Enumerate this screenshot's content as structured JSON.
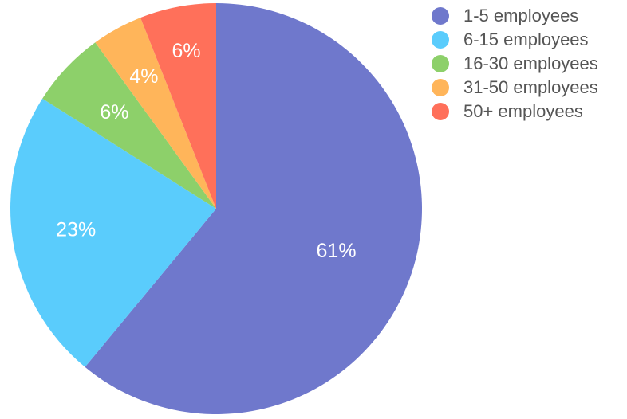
{
  "chart_data": {
    "type": "pie",
    "categories": [
      "1-5 employees",
      "6-15 employees",
      "16-30 employees",
      "31-50 employees",
      "50+ employees"
    ],
    "values": [
      61,
      23,
      6,
      4,
      6
    ],
    "value_labels": [
      "61%",
      "23%",
      "6%",
      "4%",
      "6%"
    ],
    "colors": [
      "#6f78cc",
      "#5accfc",
      "#8dd06a",
      "#ffb55a",
      "#ff705a"
    ],
    "legend_position": "top-right",
    "start_angle_deg": 0,
    "direction": "clockwise"
  }
}
